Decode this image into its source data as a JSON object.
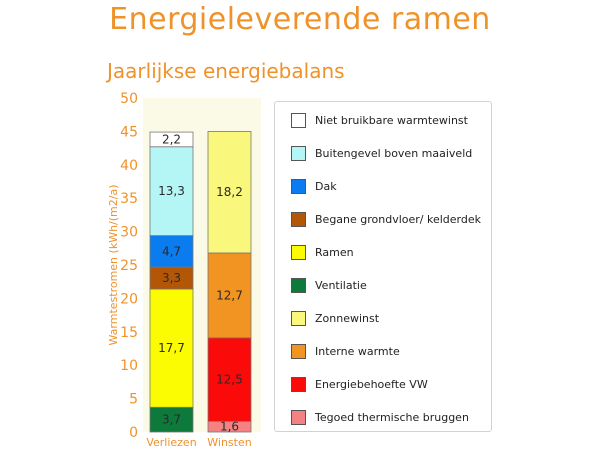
{
  "page": {
    "title": "Energieleverende ramen"
  },
  "chart_data": {
    "type": "bar",
    "stacked": true,
    "title": "Jaarlijkse energiebalans",
    "ylabel": "Warmtestromen (kWh/(m2/a)",
    "xlabel": "",
    "ylim": [
      0,
      50
    ],
    "yticks": [
      0,
      5,
      10,
      15,
      20,
      25,
      30,
      35,
      40,
      45,
      50
    ],
    "categories": [
      "Verliezen",
      "Winsten"
    ],
    "grid": false,
    "legend_position": "right",
    "series": [
      {
        "name": "Niet bruikbare warmtewinst",
        "color": "#ffffff",
        "values": [
          2.2,
          0
        ]
      },
      {
        "name": "Buitengevel boven maaiveld",
        "color": "#b4f6f6",
        "values": [
          13.3,
          0
        ]
      },
      {
        "name": "Dak",
        "color": "#0a7cf0",
        "values": [
          4.7,
          0
        ]
      },
      {
        "name": "Begane grondvloer/ kelderdek",
        "color": "#b35706",
        "values": [
          3.3,
          0
        ]
      },
      {
        "name": "Ramen",
        "color": "#fbfb02",
        "values": [
          17.7,
          0
        ]
      },
      {
        "name": "Ventilatie",
        "color": "#0d7a3c",
        "values": [
          3.7,
          0
        ]
      },
      {
        "name": "Zonnewinst",
        "color": "#f9f77c",
        "values": [
          0,
          18.2
        ]
      },
      {
        "name": "Interne warmte",
        "color": "#f29422",
        "values": [
          0,
          12.7
        ]
      },
      {
        "name": "Energiebehoefte VW",
        "color": "#fb0a0a",
        "values": [
          0,
          12.5
        ]
      },
      {
        "name": "Tegoed thermische bruggen",
        "color": "#f58282",
        "values": [
          0,
          1.6
        ]
      }
    ],
    "stack_order": {
      "Verliezen": [
        {
          "series": "Ventilatie",
          "label": "3,7"
        },
        {
          "series": "Ramen",
          "label": "17,7"
        },
        {
          "series": "Begane grondvloer/ kelderdek",
          "label": "3,3"
        },
        {
          "series": "Dak",
          "label": "4,7"
        },
        {
          "series": "Buitengevel boven maaiveld",
          "label": "13,3"
        },
        {
          "series": "Niet bruikbare warmtewinst",
          "label": "2,2"
        }
      ],
      "Winsten": [
        {
          "series": "Tegoed thermische bruggen",
          "label": "1,6"
        },
        {
          "series": "Energiebehoefte VW",
          "label": "12,5"
        },
        {
          "series": "Interne warmte",
          "label": "12,7"
        },
        {
          "series": "Zonnewinst",
          "label": "18,2"
        }
      ]
    },
    "colors": {
      "title": "#f0922a",
      "axis_text": "#f0922a",
      "plot_background": "#fbfae6",
      "bar_border": "#777777"
    }
  }
}
